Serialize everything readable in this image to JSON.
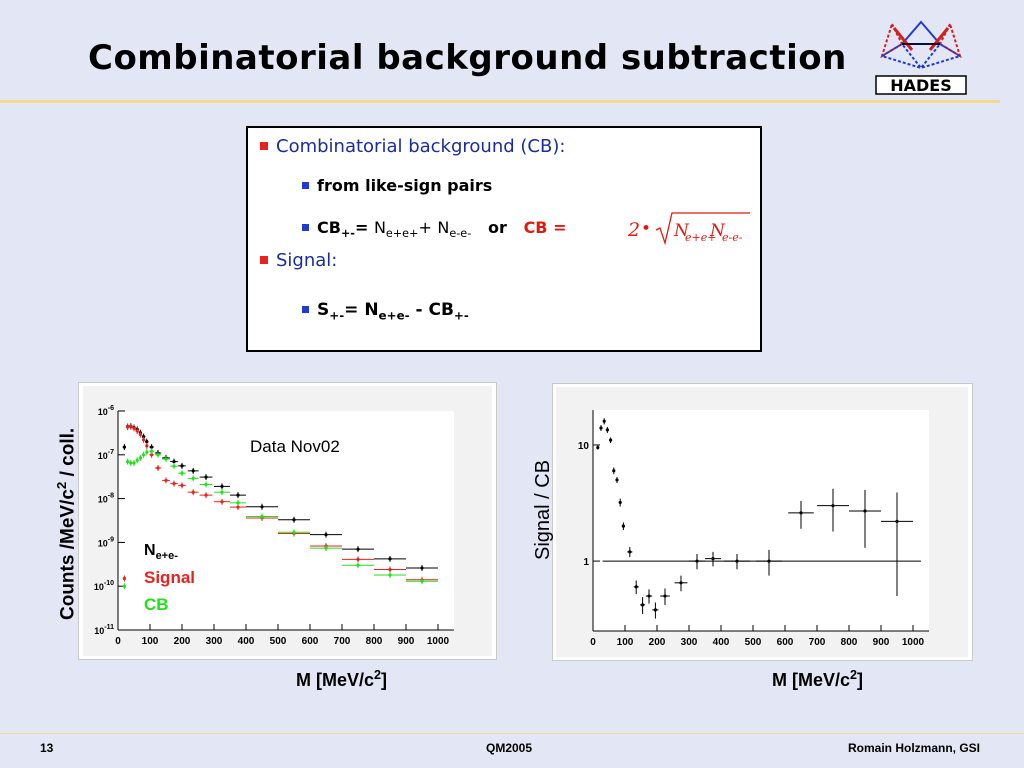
{
  "slide": {
    "title": "Combinatorial background subtraction",
    "logo_text": "HADES",
    "box": {
      "b1": "Combinatorial background (CB):",
      "b1a": "from like-sign pairs",
      "cb_label": "CB",
      "cb_sub": "+-",
      "eq": "=",
      "n": "N",
      "epep": "e+e+",
      "plus": "+",
      "emem": "e-e-",
      "or": "or",
      "cb_eq": "CB =",
      "formula_two": "2",
      "formula_dot": "•",
      "b2": "Signal:",
      "s_label": "S",
      "s_sub": "+-",
      "s_eq": "= N",
      "s_nsub": "e+e-",
      "s_minus": "- CB",
      "s_cbsub": "+-"
    },
    "footer": {
      "page": "13",
      "conf": "QM2005",
      "author": "Romain Holzmann, GSI"
    }
  },
  "left_axis_label": {
    "main": "Counts /MeV/c",
    "sup": "2",
    "tail": " / coll."
  },
  "right_axis_label": "Signal / CB",
  "xlabel_left": {
    "main": "M [MeV/c",
    "sup": "2",
    "tail": "]"
  },
  "xlabel_right": {
    "main": "M [MeV/c",
    "sup": "2",
    "tail": "]"
  },
  "colors": {
    "nepem": "#000000",
    "signal": "#e8231d",
    "cb": "#22e01c",
    "accent_red": "#e8231d",
    "bullet_blue": "#1f3bd0"
  },
  "chart_data": [
    {
      "type": "scatter",
      "xlim": [
        0,
        1050
      ],
      "ylim_log10": [
        -11,
        -6
      ],
      "yscale": "log",
      "x_ticks": [
        0,
        100,
        200,
        300,
        400,
        500,
        600,
        700,
        800,
        900,
        1000
      ],
      "y_tick_exponents": [
        -6,
        -7,
        -8,
        -9,
        -10,
        -11
      ],
      "y_tick_base": "10",
      "annotation": "Data Nov02",
      "legend": [
        {
          "name": "N",
          "sub": "e+e-",
          "color": "#000000"
        },
        {
          "name": "Signal",
          "color": "#e8231d"
        },
        {
          "name": "CB",
          "color": "#22e01c"
        }
      ],
      "series": [
        {
          "name": "N e+e-",
          "color": "#000000",
          "x": [
            20,
            30,
            40,
            50,
            60,
            70,
            80,
            90,
            105,
            125,
            150,
            175,
            200,
            235,
            275,
            325,
            375,
            450,
            550,
            650,
            750,
            850,
            950
          ],
          "dx": [
            5,
            5,
            5,
            5,
            5,
            5,
            5,
            5,
            7,
            10,
            12,
            12,
            12,
            17,
            20,
            25,
            25,
            50,
            50,
            50,
            50,
            50,
            50
          ],
          "y": [
            1.5e-07,
            4.4e-07,
            4.5e-07,
            4.2e-07,
            3.8e-07,
            3.2e-07,
            2.6e-07,
            2e-07,
            1.5e-07,
            1.1e-07,
            8.5e-08,
            7e-08,
            5.6e-08,
            4.3e-08,
            3.1e-08,
            1.9e-08,
            1.2e-08,
            6.5e-09,
            3.3e-09,
            1.5e-09,
            7e-10,
            4.2e-10,
            2.6e-10
          ]
        },
        {
          "name": "Signal",
          "color": "#e8231d",
          "x": [
            20,
            30,
            40,
            50,
            60,
            70,
            80,
            90,
            105,
            125,
            150,
            175,
            200,
            235,
            275,
            325,
            375,
            450,
            550,
            650,
            750,
            850,
            950
          ],
          "dx": [
            5,
            5,
            5,
            5,
            5,
            5,
            5,
            5,
            7,
            10,
            12,
            12,
            12,
            17,
            20,
            25,
            25,
            50,
            50,
            50,
            50,
            50,
            50
          ],
          "y": [
            1.5e-10,
            4.3e-07,
            4.4e-07,
            4e-07,
            3.5e-07,
            2.9e-07,
            2.2e-07,
            1.6e-07,
            1e-07,
            5e-08,
            2.6e-08,
            2.2e-08,
            2e-08,
            1.4e-08,
            1.2e-08,
            8.5e-09,
            6.4e-09,
            3.6e-09,
            1.6e-09,
            8.3e-10,
            4.1e-10,
            2.4e-10,
            1.4e-10
          ]
        },
        {
          "name": "CB",
          "color": "#22e01c",
          "x": [
            20,
            30,
            40,
            50,
            60,
            70,
            80,
            90,
            105,
            125,
            150,
            175,
            200,
            235,
            275,
            325,
            375,
            450,
            550,
            650,
            750,
            850,
            950
          ],
          "dx": [
            5,
            5,
            5,
            5,
            5,
            5,
            5,
            5,
            7,
            10,
            12,
            12,
            12,
            17,
            20,
            25,
            25,
            50,
            50,
            50,
            50,
            50,
            50
          ],
          "y": [
            1e-10,
            7e-08,
            6.5e-08,
            6.5e-08,
            7.5e-08,
            8.5e-08,
            1e-07,
            1.15e-07,
            1.2e-07,
            1e-07,
            8e-08,
            5.5e-08,
            3.8e-08,
            2.9e-08,
            2.1e-08,
            1.4e-08,
            8e-09,
            3.9e-09,
            1.7e-09,
            7.4e-10,
            3e-10,
            1.8e-10,
            1.3e-10
          ]
        }
      ]
    },
    {
      "type": "scatter",
      "xlim": [
        0,
        1050
      ],
      "ylim": [
        0.25,
        20
      ],
      "yscale": "log",
      "x_ticks": [
        0,
        100,
        200,
        300,
        400,
        500,
        600,
        700,
        800,
        900,
        1000
      ],
      "y_ticks": [
        10,
        1
      ],
      "reference_line": 1,
      "series": [
        {
          "name": "Signal / CB",
          "color": "#000000",
          "x": [
            15,
            25,
            35,
            45,
            55,
            65,
            75,
            85,
            95,
            115,
            135,
            155,
            175,
            195,
            225,
            275,
            325,
            375,
            450,
            550,
            650,
            750,
            850,
            950
          ],
          "dx": [
            3,
            3,
            3,
            3,
            3,
            3,
            3,
            3,
            5,
            8,
            8,
            8,
            10,
            10,
            15,
            20,
            25,
            25,
            40,
            40,
            40,
            50,
            50,
            50
          ],
          "y": [
            9.5,
            14,
            16,
            13.5,
            11,
            6.0,
            5.0,
            3.2,
            2.0,
            1.2,
            0.6,
            0.42,
            0.5,
            0.38,
            0.5,
            0.65,
            1.0,
            1.05,
            1.0,
            1.0,
            2.6,
            3.0,
            2.7,
            2.2
          ],
          "yerr": [
            0.4,
            0.8,
            1.0,
            0.8,
            0.6,
            0.4,
            0.3,
            0.25,
            0.15,
            0.12,
            0.08,
            0.07,
            0.07,
            0.06,
            0.08,
            0.1,
            0.15,
            0.15,
            0.15,
            0.25,
            0.7,
            1.2,
            1.4,
            1.7
          ]
        }
      ]
    }
  ]
}
